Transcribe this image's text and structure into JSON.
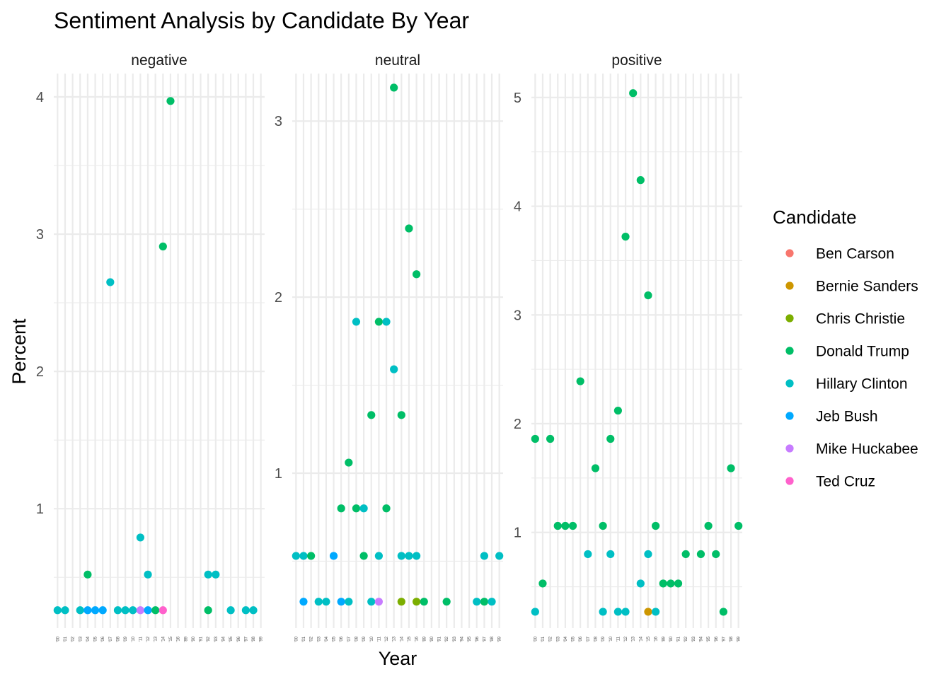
{
  "chart_data": {
    "type": "scatter",
    "title": "Sentiment Analysis by Candidate By Year",
    "xlabel": "Year",
    "ylabel": "Percent",
    "x_categories": [
      "'00",
      "'01",
      "'02",
      "'03",
      "'04",
      "'05",
      "'06",
      "'07",
      "'08",
      "'09",
      "'10",
      "'11",
      "'12",
      "'13",
      "'14",
      "'15",
      "'16",
      "'89",
      "'90",
      "'91",
      "'92",
      "'93",
      "'94",
      "'95",
      "'96",
      "'97",
      "'98",
      "'99"
    ],
    "legend": {
      "title": "Candidate",
      "placement": "right",
      "entries": [
        {
          "name": "Ben Carson",
          "color": "#F8766D"
        },
        {
          "name": "Bernie Sanders",
          "color": "#CD9600"
        },
        {
          "name": "Chris Christie",
          "color": "#7CAE00"
        },
        {
          "name": "Donald Trump",
          "color": "#00BE67"
        },
        {
          "name": "Hillary Clinton",
          "color": "#00BFC4"
        },
        {
          "name": "Jeb Bush",
          "color": "#00A9FF"
        },
        {
          "name": "Mike Huckabee",
          "color": "#C77CFF"
        },
        {
          "name": "Ted Cruz",
          "color": "#FF61CC"
        }
      ]
    },
    "panels": [
      {
        "name": "negative",
        "ylim": [
          0.13,
          4.17
        ],
        "y_ticks": [
          1,
          2,
          3,
          4
        ],
        "points": [
          {
            "x": "'00",
            "y": 0.26,
            "c": "Hillary Clinton"
          },
          {
            "x": "'01",
            "y": 0.26,
            "c": "Hillary Clinton"
          },
          {
            "x": "'03",
            "y": 0.26,
            "c": "Hillary Clinton"
          },
          {
            "x": "'04",
            "y": 0.26,
            "c": "Jeb Bush"
          },
          {
            "x": "'04",
            "y": 0.52,
            "c": "Donald Trump"
          },
          {
            "x": "'05",
            "y": 0.26,
            "c": "Jeb Bush"
          },
          {
            "x": "'06",
            "y": 0.26,
            "c": "Jeb Bush"
          },
          {
            "x": "'07",
            "y": 2.65,
            "c": "Hillary Clinton"
          },
          {
            "x": "'08",
            "y": 0.26,
            "c": "Hillary Clinton"
          },
          {
            "x": "'09",
            "y": 0.26,
            "c": "Hillary Clinton"
          },
          {
            "x": "'10",
            "y": 0.26,
            "c": "Hillary Clinton"
          },
          {
            "x": "'11",
            "y": 0.26,
            "c": "Mike Huckabee"
          },
          {
            "x": "'11",
            "y": 0.79,
            "c": "Hillary Clinton"
          },
          {
            "x": "'12",
            "y": 0.26,
            "c": "Jeb Bush"
          },
          {
            "x": "'12",
            "y": 0.52,
            "c": "Hillary Clinton"
          },
          {
            "x": "'13",
            "y": 0.26,
            "c": "Donald Trump"
          },
          {
            "x": "'14",
            "y": 0.26,
            "c": "Ted Cruz"
          },
          {
            "x": "'14",
            "y": 2.91,
            "c": "Donald Trump"
          },
          {
            "x": "'15",
            "y": 3.97,
            "c": "Donald Trump"
          },
          {
            "x": "'92",
            "y": 0.26,
            "c": "Donald Trump"
          },
          {
            "x": "'92",
            "y": 0.52,
            "c": "Hillary Clinton"
          },
          {
            "x": "'93",
            "y": 0.52,
            "c": "Hillary Clinton"
          },
          {
            "x": "'95",
            "y": 0.26,
            "c": "Hillary Clinton"
          },
          {
            "x": "'97",
            "y": 0.26,
            "c": "Hillary Clinton"
          },
          {
            "x": "'98",
            "y": 0.26,
            "c": "Hillary Clinton"
          }
        ]
      },
      {
        "name": "neutral",
        "ylim": [
          0.12,
          3.27
        ],
        "y_ticks": [
          1,
          2,
          3
        ],
        "points": [
          {
            "x": "'00",
            "y": 0.53,
            "c": "Hillary Clinton"
          },
          {
            "x": "'01",
            "y": 0.53,
            "c": "Hillary Clinton"
          },
          {
            "x": "'01",
            "y": 0.27,
            "c": "Jeb Bush"
          },
          {
            "x": "'02",
            "y": 0.53,
            "c": "Donald Trump"
          },
          {
            "x": "'03",
            "y": 0.27,
            "c": "Hillary Clinton"
          },
          {
            "x": "'04",
            "y": 0.27,
            "c": "Hillary Clinton"
          },
          {
            "x": "'05",
            "y": 0.53,
            "c": "Jeb Bush"
          },
          {
            "x": "'06",
            "y": 0.27,
            "c": "Jeb Bush"
          },
          {
            "x": "'06",
            "y": 0.8,
            "c": "Donald Trump"
          },
          {
            "x": "'07",
            "y": 0.27,
            "c": "Hillary Clinton"
          },
          {
            "x": "'07",
            "y": 1.06,
            "c": "Donald Trump"
          },
          {
            "x": "'08",
            "y": 0.8,
            "c": "Donald Trump"
          },
          {
            "x": "'08",
            "y": 1.86,
            "c": "Hillary Clinton"
          },
          {
            "x": "'09",
            "y": 0.53,
            "c": "Donald Trump"
          },
          {
            "x": "'09",
            "y": 0.8,
            "c": "Hillary Clinton"
          },
          {
            "x": "'10",
            "y": 0.27,
            "c": "Hillary Clinton"
          },
          {
            "x": "'10",
            "y": 1.33,
            "c": "Donald Trump"
          },
          {
            "x": "'11",
            "y": 0.27,
            "c": "Mike Huckabee"
          },
          {
            "x": "'11",
            "y": 0.53,
            "c": "Hillary Clinton"
          },
          {
            "x": "'11",
            "y": 1.86,
            "c": "Donald Trump"
          },
          {
            "x": "'12",
            "y": 0.8,
            "c": "Donald Trump"
          },
          {
            "x": "'12",
            "y": 1.86,
            "c": "Hillary Clinton"
          },
          {
            "x": "'13",
            "y": 1.59,
            "c": "Hillary Clinton"
          },
          {
            "x": "'13",
            "y": 3.19,
            "c": "Donald Trump"
          },
          {
            "x": "'14",
            "y": 0.27,
            "c": "Chris Christie"
          },
          {
            "x": "'14",
            "y": 0.53,
            "c": "Hillary Clinton"
          },
          {
            "x": "'14",
            "y": 1.33,
            "c": "Donald Trump"
          },
          {
            "x": "'15",
            "y": 0.53,
            "c": "Hillary Clinton"
          },
          {
            "x": "'15",
            "y": 2.39,
            "c": "Donald Trump"
          },
          {
            "x": "'16",
            "y": 0.27,
            "c": "Chris Christie"
          },
          {
            "x": "'16",
            "y": 0.53,
            "c": "Hillary Clinton"
          },
          {
            "x": "'16",
            "y": 2.13,
            "c": "Donald Trump"
          },
          {
            "x": "'89",
            "y": 0.27,
            "c": "Donald Trump"
          },
          {
            "x": "'92",
            "y": 0.27,
            "c": "Donald Trump"
          },
          {
            "x": "'96",
            "y": 0.27,
            "c": "Hillary Clinton"
          },
          {
            "x": "'97",
            "y": 0.27,
            "c": "Donald Trump"
          },
          {
            "x": "'97",
            "y": 0.53,
            "c": "Hillary Clinton"
          },
          {
            "x": "'98",
            "y": 0.27,
            "c": "Hillary Clinton"
          },
          {
            "x": "'99",
            "y": 0.53,
            "c": "Hillary Clinton"
          }
        ]
      },
      {
        "name": "positive",
        "ylim": [
          0.12,
          5.22
        ],
        "y_ticks": [
          1,
          2,
          3,
          4,
          5
        ],
        "points": [
          {
            "x": "'00",
            "y": 1.86,
            "c": "Donald Trump"
          },
          {
            "x": "'00",
            "y": 0.27,
            "c": "Hillary Clinton"
          },
          {
            "x": "'01",
            "y": 0.53,
            "c": "Donald Trump"
          },
          {
            "x": "'02",
            "y": 1.86,
            "c": "Donald Trump"
          },
          {
            "x": "'03",
            "y": 1.06,
            "c": "Donald Trump"
          },
          {
            "x": "'04",
            "y": 1.06,
            "c": "Donald Trump"
          },
          {
            "x": "'05",
            "y": 1.06,
            "c": "Donald Trump"
          },
          {
            "x": "'06",
            "y": 2.39,
            "c": "Donald Trump"
          },
          {
            "x": "'07",
            "y": 0.8,
            "c": "Hillary Clinton"
          },
          {
            "x": "'08",
            "y": 1.59,
            "c": "Donald Trump"
          },
          {
            "x": "'09",
            "y": 1.06,
            "c": "Donald Trump"
          },
          {
            "x": "'09",
            "y": 0.27,
            "c": "Hillary Clinton"
          },
          {
            "x": "'10",
            "y": 1.86,
            "c": "Donald Trump"
          },
          {
            "x": "'10",
            "y": 0.8,
            "c": "Hillary Clinton"
          },
          {
            "x": "'11",
            "y": 2.12,
            "c": "Donald Trump"
          },
          {
            "x": "'11",
            "y": 0.27,
            "c": "Hillary Clinton"
          },
          {
            "x": "'12",
            "y": 3.72,
            "c": "Donald Trump"
          },
          {
            "x": "'12",
            "y": 0.27,
            "c": "Hillary Clinton"
          },
          {
            "x": "'13",
            "y": 5.04,
            "c": "Donald Trump"
          },
          {
            "x": "'14",
            "y": 4.24,
            "c": "Donald Trump"
          },
          {
            "x": "'14",
            "y": 0.53,
            "c": "Hillary Clinton"
          },
          {
            "x": "'15",
            "y": 3.18,
            "c": "Donald Trump"
          },
          {
            "x": "'15",
            "y": 0.8,
            "c": "Hillary Clinton"
          },
          {
            "x": "'15",
            "y": 0.27,
            "c": "Bernie Sanders"
          },
          {
            "x": "'16",
            "y": 1.06,
            "c": "Donald Trump"
          },
          {
            "x": "'16",
            "y": 0.27,
            "c": "Hillary Clinton"
          },
          {
            "x": "'89",
            "y": 0.53,
            "c": "Donald Trump"
          },
          {
            "x": "'90",
            "y": 0.53,
            "c": "Donald Trump"
          },
          {
            "x": "'91",
            "y": 0.53,
            "c": "Donald Trump"
          },
          {
            "x": "'92",
            "y": 0.8,
            "c": "Donald Trump"
          },
          {
            "x": "'94",
            "y": 0.8,
            "c": "Donald Trump"
          },
          {
            "x": "'95",
            "y": 1.06,
            "c": "Donald Trump"
          },
          {
            "x": "'96",
            "y": 0.8,
            "c": "Donald Trump"
          },
          {
            "x": "'97",
            "y": 0.27,
            "c": "Donald Trump"
          },
          {
            "x": "'98",
            "y": 1.59,
            "c": "Donald Trump"
          },
          {
            "x": "'99",
            "y": 1.06,
            "c": "Donald Trump"
          }
        ]
      }
    ]
  }
}
